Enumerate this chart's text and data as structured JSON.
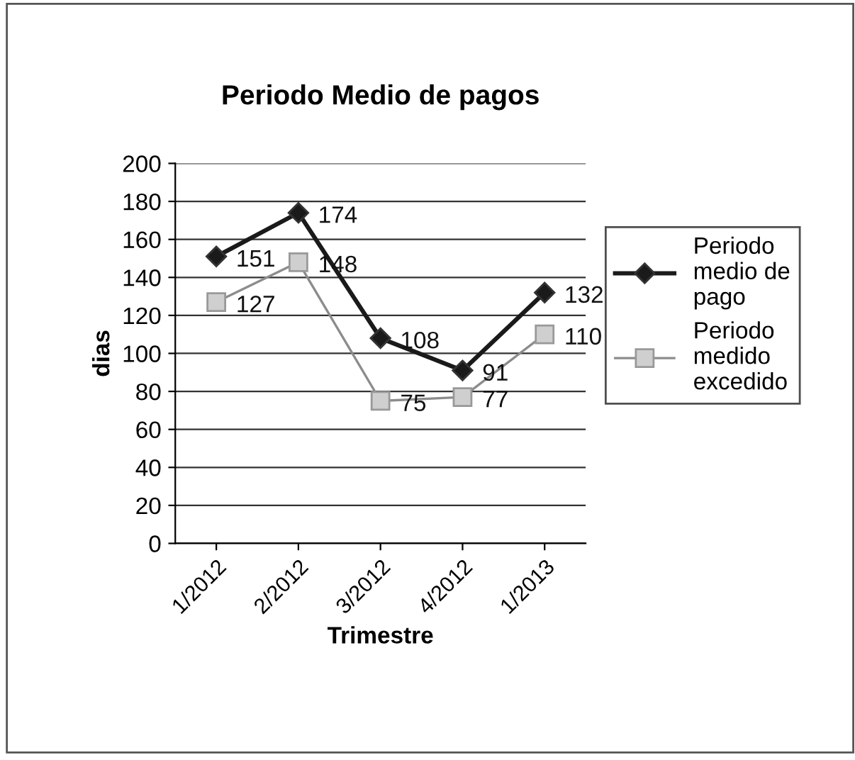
{
  "chart_data": {
    "type": "line",
    "title": "Periodo Medio de pagos",
    "xlabel": "Trimestre",
    "ylabel": "dias",
    "categories": [
      "1/2012",
      "2/2012",
      "3/2012",
      "4/2012",
      "1/2013"
    ],
    "series": [
      {
        "name": "Periodo medio de pago",
        "color": "#1a1a1a",
        "marker": "diamond",
        "values": [
          151,
          174,
          108,
          91,
          132
        ]
      },
      {
        "name": "Periodo medido excedido",
        "color": "#8c8c8c",
        "marker": "square",
        "values": [
          127,
          148,
          75,
          77,
          110
        ]
      }
    ],
    "ylim": [
      0,
      200
    ],
    "yticks": [
      0,
      20,
      40,
      60,
      80,
      100,
      120,
      140,
      160,
      180,
      200
    ],
    "grid": "y",
    "legend": "right",
    "data_labels": true,
    "line_style": "solid"
  }
}
